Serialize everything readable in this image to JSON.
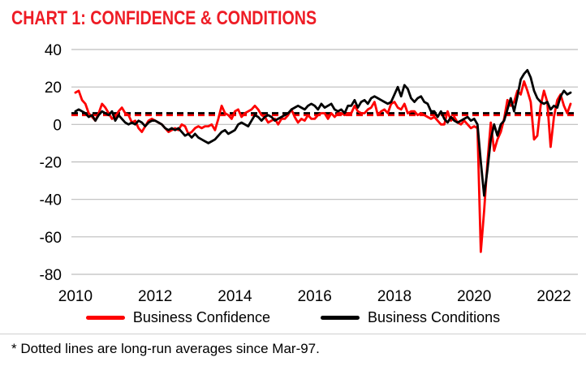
{
  "title": "CHART 1: CONFIDENCE & CONDITIONS",
  "footnote": "* Dotted lines are long-run averages since Mar-97.",
  "colors": {
    "title": "#ee1c25",
    "grid": "#bdbdbd",
    "confidence": "#fe0000",
    "conditions": "#000000",
    "axis_text": "#000000"
  },
  "legend": {
    "items": [
      {
        "label": "Business Confidence",
        "color": "#fe0000"
      },
      {
        "label": "Business Conditions",
        "color": "#000000"
      }
    ]
  },
  "chart_data": {
    "type": "line",
    "title": "CHART 1: CONFIDENCE & CONDITIONS",
    "xlabel": "",
    "ylabel": "",
    "x_start": 2010.0,
    "x_step": 0.0833333,
    "x_unit": "year-month",
    "xlim": [
      2009.9,
      2022.6
    ],
    "ylim": [
      -80,
      40
    ],
    "yticks": [
      40,
      20,
      0,
      -20,
      -40,
      -60,
      -80
    ],
    "xticks": [
      2010,
      2012,
      2014,
      2016,
      2018,
      2020,
      2022
    ],
    "grid": true,
    "legend_position": "bottom",
    "series": [
      {
        "name": "Business Confidence",
        "color": "#fe0000",
        "style": "solid",
        "values": [
          17,
          18,
          13,
          11,
          6,
          4,
          2,
          6,
          11,
          9,
          6,
          3,
          4,
          7,
          9,
          6,
          5,
          1,
          2,
          -2,
          -4,
          -1,
          2,
          3,
          2,
          1,
          0,
          -2,
          -4,
          -3,
          -2,
          -3,
          0,
          -1,
          -5,
          -4,
          -2,
          -1,
          -2,
          -1,
          -1,
          0,
          -3,
          3,
          10,
          6,
          5,
          3,
          7,
          8,
          4,
          6,
          7,
          8,
          10,
          8,
          5,
          4,
          1,
          2,
          3,
          0,
          3,
          3,
          5,
          8,
          4,
          1,
          3,
          2,
          5,
          3,
          3,
          5,
          6,
          6,
          3,
          6,
          4,
          6,
          6,
          5,
          6,
          6,
          10,
          7,
          6,
          6,
          8,
          9,
          12,
          5,
          7,
          8,
          6,
          11,
          12,
          9,
          8,
          11,
          6,
          7,
          7,
          5,
          6,
          5,
          4,
          3,
          4,
          2,
          0,
          0,
          7,
          2,
          4,
          1,
          0,
          2,
          0,
          -2,
          -1,
          -2,
          -68,
          -46,
          -20,
          1,
          -14,
          -8,
          -4,
          3,
          13,
          10,
          12,
          18,
          16,
          23,
          18,
          12,
          -8,
          -6,
          10,
          18,
          12,
          -12,
          4,
          13,
          16,
          10,
          6,
          11
        ]
      },
      {
        "name": "Business Conditions",
        "color": "#000000",
        "style": "solid",
        "values": [
          7,
          8,
          7,
          6,
          4,
          5,
          2,
          5,
          7,
          6,
          5,
          7,
          2,
          5,
          3,
          1,
          0,
          1,
          0,
          2,
          1,
          -1,
          1,
          2,
          2,
          1,
          0,
          -2,
          -3,
          -2,
          -3,
          -2,
          -4,
          -6,
          -5,
          -7,
          -5,
          -7,
          -8,
          -9,
          -10,
          -9,
          -8,
          -6,
          -4,
          -3,
          -5,
          -4,
          -3,
          0,
          1,
          0,
          -1,
          2,
          5,
          4,
          2,
          4,
          5,
          4,
          2,
          3,
          4,
          5,
          6,
          8,
          9,
          10,
          9,
          8,
          10,
          11,
          10,
          8,
          11,
          9,
          10,
          11,
          8,
          7,
          8,
          6,
          10,
          10,
          13,
          9,
          12,
          13,
          11,
          14,
          15,
          14,
          13,
          12,
          11,
          12,
          16,
          20,
          15,
          21,
          19,
          14,
          12,
          14,
          15,
          12,
          11,
          7,
          7,
          4,
          7,
          3,
          1,
          4,
          2,
          1,
          2,
          3,
          4,
          2,
          3,
          0,
          -20,
          -38,
          -24,
          -8,
          0,
          -6,
          0,
          2,
          8,
          14,
          7,
          15,
          24,
          27,
          29,
          25,
          18,
          14,
          12,
          11,
          12,
          8,
          10,
          9,
          15,
          18,
          16,
          17
        ]
      }
    ],
    "long_run_averages": [
      {
        "name": "Business Confidence long-run average",
        "value": 5,
        "color": "#fe0000",
        "style": "dashed"
      },
      {
        "name": "Business Conditions long-run average",
        "value": 6,
        "color": "#000000",
        "style": "dashed"
      }
    ]
  }
}
